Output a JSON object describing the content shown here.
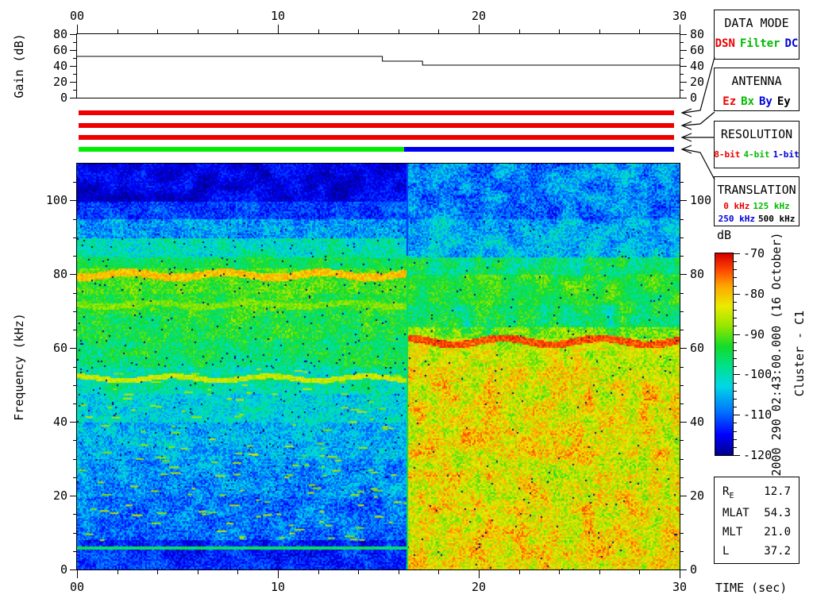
{
  "boxes": {
    "data_mode": {
      "title": "DATA MODE",
      "items": [
        {
          "label": "DSN",
          "color": "#ee0000"
        },
        {
          "label": "Filter",
          "color": "#00bb00"
        },
        {
          "label": "DC",
          "color": "#0000dd"
        }
      ]
    },
    "antenna": {
      "title": "ANTENNA",
      "items": [
        {
          "label": "Ez",
          "color": "#ee0000"
        },
        {
          "label": "Bx",
          "color": "#00bb00"
        },
        {
          "label": "By",
          "color": "#0000dd"
        },
        {
          "label": "Ey",
          "color": "#000000"
        }
      ]
    },
    "resolution": {
      "title": "RESOLUTION",
      "items": [
        {
          "label": "8-bit",
          "color": "#ee0000"
        },
        {
          "label": "4-bit",
          "color": "#00bb00"
        },
        {
          "label": "1-bit",
          "color": "#0000dd"
        }
      ]
    },
    "translation": {
      "title": "TRANSLATION",
      "rows": [
        [
          {
            "label": "0 kHz",
            "color": "#ee0000"
          },
          {
            "label": "125 kHz",
            "color": "#00bb00"
          }
        ],
        [
          {
            "label": "250 kHz",
            "color": "#0000dd"
          },
          {
            "label": "500 kHz",
            "color": "#000000"
          }
        ]
      ]
    }
  },
  "side_text": {
    "timestamp": "2000 290 02:43:00.000 (16 October)",
    "spacecraft": "Cluster - C1"
  },
  "ephemeris": {
    "rows": [
      {
        "label": "R",
        "sub": "E",
        "value": "12.7"
      },
      {
        "label": "MLAT",
        "sub": "",
        "value": "54.3"
      },
      {
        "label": "MLT",
        "sub": "",
        "value": "21.0"
      },
      {
        "label": "L",
        "sub": "",
        "value": "37.2"
      }
    ]
  },
  "chart_data": [
    {
      "type": "line",
      "title": "Receiver gain vs time",
      "ylabel": "Gain (dB)",
      "xlim": [
        0,
        30
      ],
      "ylim": [
        0,
        80
      ],
      "xticks": [
        0,
        10,
        20,
        30
      ],
      "xtick_labels": [
        "00",
        "10",
        "20",
        "30"
      ],
      "minor_x_step": 2,
      "yticks": [
        0,
        20,
        40,
        60,
        80
      ],
      "ytick_labels": [
        "0",
        "20",
        "40",
        "60",
        "80"
      ],
      "minor_y_step": 10,
      "series": [
        {
          "name": "gain",
          "points": [
            [
              0,
              52
            ],
            [
              15.2,
              52
            ],
            [
              15.2,
              46
            ],
            [
              17.2,
              46
            ],
            [
              17.2,
              41
            ],
            [
              30,
              41
            ]
          ]
        }
      ]
    },
    {
      "type": "timeline-bars",
      "title": "Instrument mode timelines",
      "xlim": [
        0,
        30
      ],
      "rows": [
        {
          "name": "data-mode",
          "segments": [
            {
              "t0": 0,
              "t1": 30,
              "label": "DSN",
              "color": "#ee0000"
            }
          ]
        },
        {
          "name": "antenna",
          "segments": [
            {
              "t0": 0,
              "t1": 30,
              "label": "Ez",
              "color": "#ee0000"
            }
          ]
        },
        {
          "name": "resolution",
          "segments": [
            {
              "t0": 0,
              "t1": 30,
              "label": "8-bit",
              "color": "#ee0000"
            }
          ]
        },
        {
          "name": "translation",
          "segments": [
            {
              "t0": 0,
              "t1": 16.4,
              "label": "125 kHz",
              "color": "#00ee00"
            },
            {
              "t0": 16.4,
              "t1": 30,
              "label": "250 kHz",
              "color": "#0000ee"
            }
          ]
        }
      ]
    },
    {
      "type": "heatmap",
      "title": "Wideband spectrogram",
      "xlabel": "TIME (sec)",
      "ylabel": "Frequency (kHz)",
      "xlim": [
        0,
        30
      ],
      "ylim": [
        0,
        110
      ],
      "xticks": [
        0,
        10,
        20,
        30
      ],
      "xtick_labels": [
        "00",
        "10",
        "20",
        "30"
      ],
      "minor_x_step": 2,
      "yticks": [
        100,
        80,
        60,
        40,
        20,
        0
      ],
      "ytick_labels": [
        "100",
        "80",
        "60",
        "40",
        "20",
        "0"
      ],
      "minor_y_step": 5,
      "colorbar": {
        "label": "dB",
        "range": [
          -120,
          -70
        ],
        "ticks": [
          -70,
          -80,
          -90,
          -100,
          -110,
          -120
        ],
        "tick_labels": [
          "-70",
          "-80",
          "-90",
          "-100",
          "-110",
          "-120"
        ],
        "minor_step": 2
      },
      "mode_boundary_sec": 16.4,
      "boundary_column": {
        "f_split": 85,
        "above_db": -112,
        "below_db": -95
      },
      "colormap": [
        [
          0.0,
          0,
          0,
          140
        ],
        [
          0.1,
          0,
          0,
          255
        ],
        [
          0.22,
          0,
          120,
          255
        ],
        [
          0.34,
          0,
          215,
          230
        ],
        [
          0.44,
          0,
          225,
          140
        ],
        [
          0.54,
          20,
          220,
          40
        ],
        [
          0.64,
          150,
          230,
          0
        ],
        [
          0.74,
          235,
          235,
          0
        ],
        [
          0.84,
          255,
          165,
          0
        ],
        [
          0.92,
          255,
          70,
          0
        ],
        [
          1.0,
          215,
          0,
          0
        ]
      ],
      "segments": [
        {
          "t0": 0,
          "t1": 16.4,
          "blotch_amp": 3,
          "dropout": 0.012,
          "bands": [
            [
              110,
              100,
              -116,
              3
            ],
            [
              100,
              95,
              -112,
              4
            ],
            [
              95,
              90,
              -107,
              5
            ],
            [
              90,
              85,
              -100,
              5
            ],
            [
              85,
              82,
              -95,
              4
            ],
            [
              82,
              75,
              -91,
              4
            ],
            [
              75,
              70,
              -93,
              4
            ],
            [
              70,
              62,
              -94,
              5
            ],
            [
              62,
              55,
              -96,
              5
            ],
            [
              55,
              48,
              -99,
              5
            ],
            [
              48,
              40,
              -102,
              5
            ],
            [
              40,
              30,
              -105,
              5
            ],
            [
              30,
              20,
              -107,
              5
            ],
            [
              20,
              8,
              -109,
              5
            ],
            [
              8,
              0,
              -113,
              4
            ]
          ],
          "lines": [
            [
              80,
              -80,
              1.0,
              0.7
            ],
            [
              72,
              -89,
              0.8,
              0.6
            ],
            [
              52,
              -85,
              0.7,
              0.6
            ],
            [
              6,
              -96,
              0.4,
              0.1
            ]
          ],
          "dashes": {
            "count": 150,
            "fmin": 8,
            "fmax": 55,
            "db": -87
          }
        },
        {
          "t0": 16.4,
          "t1": 30,
          "blotch_amp": 5,
          "dropout": 0.005,
          "bands": [
            [
              110,
              95,
              -108,
              5
            ],
            [
              95,
              85,
              -105,
              5
            ],
            [
              85,
              80,
              -97,
              5
            ],
            [
              80,
              72,
              -93,
              4
            ],
            [
              72,
              66,
              -96,
              5
            ],
            [
              66,
              63,
              -90,
              5
            ],
            [
              63,
              55,
              -85,
              5
            ],
            [
              55,
              0,
              -83,
              6
            ]
          ],
          "lines": [
            [
              62,
              -74,
              1.0,
              0.9
            ]
          ],
          "dashes": {
            "count": 40,
            "fmin": 50,
            "fmax": 62,
            "db": -79
          }
        }
      ]
    }
  ]
}
